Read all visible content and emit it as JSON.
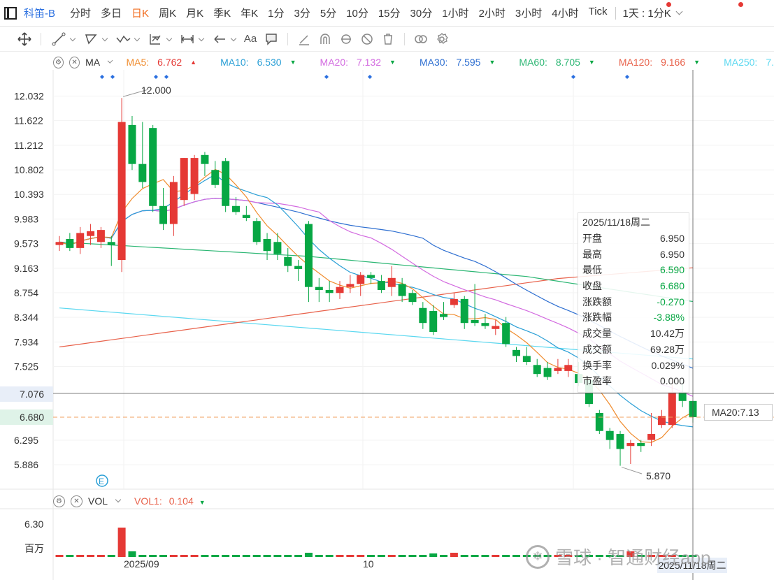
{
  "period_bar": {
    "symbol": "科笛-B",
    "periods": [
      "分时",
      "多日",
      "日K",
      "周K",
      "月K",
      "季K",
      "年K",
      "1分",
      "3分",
      "5分",
      "10分",
      "15分",
      "30分",
      "1小时",
      "2小时",
      "3小时",
      "4小时",
      "Tick"
    ],
    "active": "日K",
    "range_select": "1天 : 1分K"
  },
  "toolbar": {
    "tools": [
      "move-icon",
      "line-tool-icon",
      "polyline-tool-icon",
      "wave-tool-icon",
      "fibonacci-tool-icon",
      "measure-tool-icon",
      "arrow-tool-icon",
      "text-tool-icon",
      "comment-tool-icon",
      "pen-tool-icon",
      "magnet-icon",
      "sync-icon",
      "hide-icon",
      "delete-icon",
      "compare-icon",
      "settings-icon"
    ],
    "text_tool_label": "Aa"
  },
  "ma_legend": {
    "label": "MA",
    "items": [
      {
        "name": "MA5:",
        "value": "6.762",
        "dir": "up",
        "color": "#f08c2e"
      },
      {
        "name": "MA10:",
        "value": "6.530",
        "dir": "down",
        "color": "#2a9fd6"
      },
      {
        "name": "MA20:",
        "value": "7.132",
        "dir": "down",
        "color": "#d36be0"
      },
      {
        "name": "MA30:",
        "value": "7.595",
        "dir": "down",
        "color": "#2e6fd1"
      },
      {
        "name": "MA60:",
        "value": "8.705",
        "dir": "down",
        "color": "#2bb673"
      },
      {
        "name": "MA120:",
        "value": "9.166",
        "dir": "down",
        "color": "#e8614a"
      },
      {
        "name": "MA250:",
        "value": "7.",
        "dir": "",
        "color": "#5bd8f0"
      }
    ]
  },
  "chart_data": {
    "type": "candlestick",
    "y_ticks": [
      "12.032",
      "11.622",
      "11.212",
      "10.802",
      "10.393",
      "9.983",
      "9.573",
      "9.163",
      "8.754",
      "8.344",
      "7.934",
      "7.525",
      "7.076",
      "6.680",
      "6.295",
      "5.886"
    ],
    "ylim": [
      5.7,
      12.2
    ],
    "x_labels": [
      "2025/09",
      "10"
    ],
    "annotations": {
      "high": "12.000",
      "low": "5.870"
    },
    "crosshair_price": "7.076",
    "last_price": "6.680",
    "ma20_tag": "MA20:7.13",
    "candles": [
      [
        9.55,
        9.7,
        9.45,
        9.6
      ],
      [
        9.65,
        9.75,
        9.45,
        9.5
      ],
      [
        9.5,
        9.85,
        9.4,
        9.75
      ],
      [
        9.7,
        9.9,
        9.55,
        9.78
      ],
      [
        9.6,
        9.85,
        9.5,
        9.8
      ],
      [
        9.6,
        9.7,
        9.2,
        9.55
      ],
      [
        9.3,
        12.0,
        9.1,
        11.6
      ],
      [
        11.55,
        11.7,
        10.8,
        10.9
      ],
      [
        10.9,
        11.6,
        10.5,
        10.6
      ],
      [
        11.5,
        11.55,
        10.1,
        10.2
      ],
      [
        10.2,
        10.5,
        9.8,
        9.9
      ],
      [
        9.9,
        10.7,
        9.7,
        10.6
      ],
      [
        10.3,
        11.0,
        10.2,
        11.0
      ],
      [
        10.4,
        11.05,
        10.3,
        11.0
      ],
      [
        11.05,
        11.1,
        10.7,
        10.9
      ],
      [
        10.8,
        10.95,
        10.5,
        10.55
      ],
      [
        10.95,
        11.0,
        10.1,
        10.2
      ],
      [
        10.2,
        10.35,
        10.05,
        10.1
      ],
      [
        10.05,
        10.2,
        9.95,
        10.0
      ],
      [
        9.95,
        10.0,
        9.55,
        9.6
      ],
      [
        9.65,
        9.75,
        9.3,
        9.45
      ],
      [
        9.6,
        9.75,
        9.3,
        9.4
      ],
      [
        9.35,
        9.5,
        9.1,
        9.2
      ],
      [
        9.2,
        9.3,
        8.95,
        9.15
      ],
      [
        9.9,
        9.95,
        8.6,
        8.85
      ],
      [
        8.85,
        9.0,
        8.6,
        8.8
      ],
      [
        8.8,
        8.95,
        8.6,
        8.75
      ],
      [
        8.75,
        8.95,
        8.65,
        8.85
      ],
      [
        8.85,
        9.05,
        8.75,
        8.9
      ],
      [
        8.9,
        9.1,
        8.7,
        9.05
      ],
      [
        9.05,
        9.1,
        8.9,
        9.0
      ],
      [
        8.95,
        9.05,
        8.75,
        8.8
      ],
      [
        8.85,
        9.2,
        8.7,
        9.0
      ],
      [
        8.9,
        9.0,
        8.6,
        8.7
      ],
      [
        8.75,
        8.8,
        8.55,
        8.6
      ],
      [
        8.5,
        8.6,
        8.15,
        8.25
      ],
      [
        8.45,
        8.55,
        8.05,
        8.1
      ],
      [
        8.4,
        8.6,
        8.3,
        8.35
      ],
      [
        8.55,
        8.75,
        8.5,
        8.65
      ],
      [
        8.65,
        8.7,
        8.15,
        8.25
      ],
      [
        8.3,
        8.9,
        8.2,
        8.25
      ],
      [
        8.25,
        8.4,
        8.15,
        8.2
      ],
      [
        8.15,
        8.3,
        8.05,
        8.2
      ],
      [
        8.25,
        8.35,
        7.85,
        7.9
      ],
      [
        7.8,
        7.85,
        7.6,
        7.7
      ],
      [
        7.7,
        7.85,
        7.55,
        7.6
      ],
      [
        7.55,
        7.65,
        7.35,
        7.4
      ],
      [
        7.5,
        7.6,
        7.3,
        7.35
      ],
      [
        7.45,
        7.65,
        7.4,
        7.5
      ],
      [
        7.45,
        7.65,
        7.35,
        7.55
      ],
      [
        7.4,
        7.6,
        7.2,
        7.25
      ],
      [
        7.3,
        7.35,
        6.85,
        6.9
      ],
      [
        6.75,
        6.8,
        6.4,
        6.45
      ],
      [
        6.45,
        6.5,
        6.15,
        6.3
      ],
      [
        6.4,
        6.45,
        5.87,
        6.15
      ],
      [
        6.2,
        6.3,
        5.9,
        6.25
      ],
      [
        6.25,
        6.3,
        6.1,
        6.2
      ],
      [
        6.3,
        6.75,
        6.2,
        6.4
      ],
      [
        6.55,
        6.8,
        6.5,
        6.7
      ],
      [
        6.55,
        7.3,
        6.5,
        7.1
      ],
      [
        7.1,
        7.3,
        6.85,
        6.95
      ],
      [
        6.95,
        6.95,
        6.59,
        6.68
      ]
    ],
    "volume_ticks": [
      "6.30",
      "百万"
    ],
    "tooltip": {
      "date": "2025/11/18周二",
      "rows": [
        {
          "label": "开盘",
          "value": "6.950",
          "cls": ""
        },
        {
          "label": "最高",
          "value": "6.950",
          "cls": ""
        },
        {
          "label": "最低",
          "value": "6.590",
          "cls": "down"
        },
        {
          "label": "收盘",
          "value": "6.680",
          "cls": "down"
        },
        {
          "label": "涨跌额",
          "value": "-0.270",
          "cls": "down"
        },
        {
          "label": "涨跌幅",
          "value": "-3.88%",
          "cls": "down"
        },
        {
          "label": "成交量",
          "value": "10.42万",
          "cls": ""
        },
        {
          "label": "成交额",
          "value": "69.28万",
          "cls": ""
        },
        {
          "label": "换手率",
          "value": "0.029%",
          "cls": ""
        },
        {
          "label": "市盈率",
          "value": "0.000",
          "cls": ""
        }
      ]
    }
  },
  "vol_legend": {
    "label": "VOL",
    "vol1_label": "VOL1:",
    "vol1_value": "0.104"
  },
  "x_date_tag": "2025/11/18周二",
  "watermark": "雪球 · 智通财经app",
  "colors": {
    "up": "#e53935",
    "down": "#07a744",
    "accent": "#f26b1d",
    "symbol": "#2a6fe0"
  }
}
